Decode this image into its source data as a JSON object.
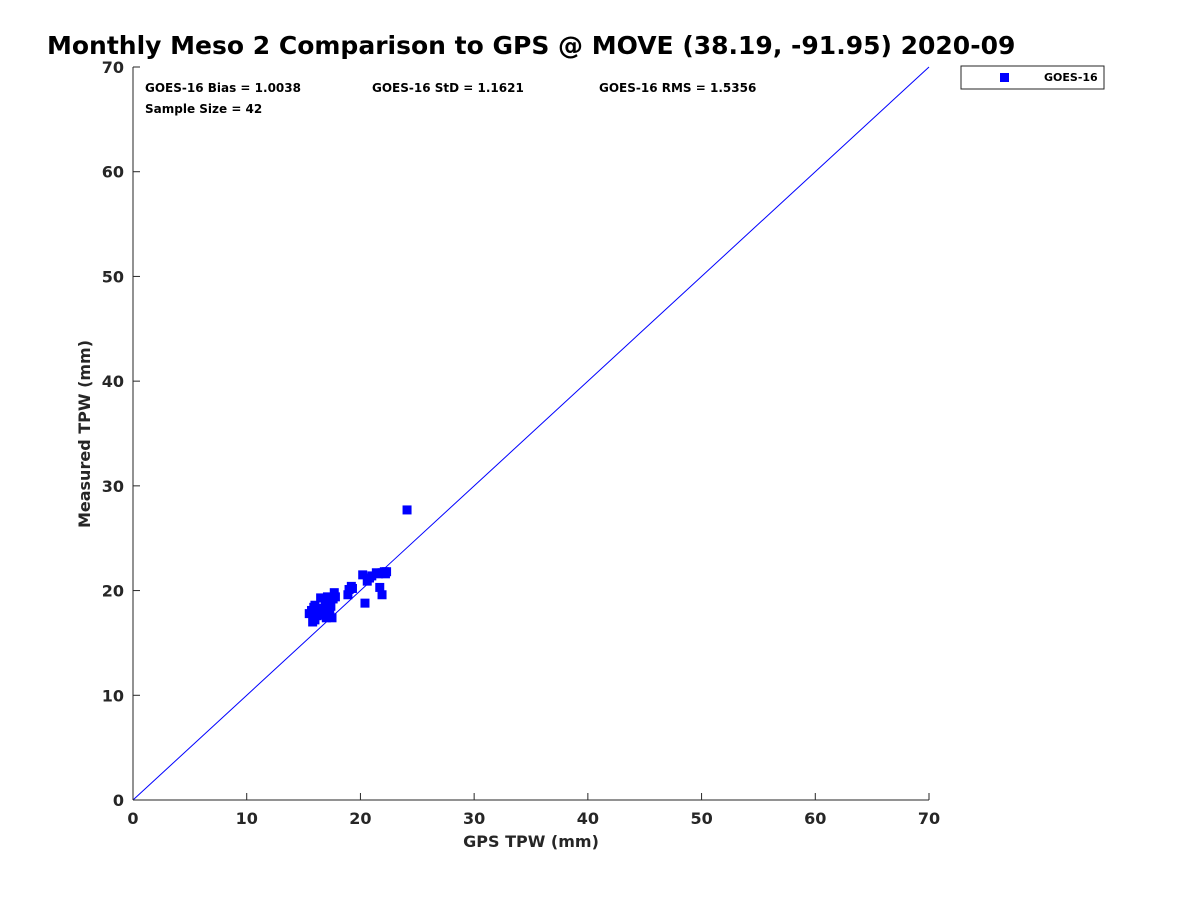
{
  "chart_data": {
    "type": "scatter",
    "title": "Monthly Meso 2 Comparison to GPS @ MOVE (38.19, -91.95) 2020-09",
    "xlabel": "GPS TPW (mm)",
    "ylabel": "Measured TPW (mm)",
    "xlim": [
      0,
      70
    ],
    "ylim": [
      0,
      70
    ],
    "xticks": [
      "0",
      "10",
      "20",
      "30",
      "40",
      "50",
      "60",
      "70"
    ],
    "yticks": [
      "0",
      "10",
      "20",
      "30",
      "40",
      "50",
      "60",
      "70"
    ],
    "grid": false,
    "legend_position": "outside top-right",
    "reference_line": {
      "from": [
        0,
        0
      ],
      "to": [
        70,
        70
      ],
      "color": "#0000ff"
    },
    "stats": {
      "bias": "GOES-16 Bias = 1.0038",
      "std": "GOES-16 StD = 1.1621",
      "rms": "GOES-16 RMS = 1.5356",
      "sample": "Sample Size = 42"
    },
    "series": [
      {
        "name": "GOES-16",
        "color": "#0000ff",
        "marker": "square",
        "points": [
          [
            15.5,
            17.8
          ],
          [
            15.7,
            18.1
          ],
          [
            15.8,
            17.0
          ],
          [
            15.9,
            18.4
          ],
          [
            16.0,
            17.2
          ],
          [
            16.0,
            18.6
          ],
          [
            16.2,
            17.6
          ],
          [
            16.3,
            18.0
          ],
          [
            16.5,
            19.3
          ],
          [
            16.6,
            17.7
          ],
          [
            16.7,
            18.3
          ],
          [
            16.8,
            17.9
          ],
          [
            16.9,
            18.7
          ],
          [
            17.0,
            17.4
          ],
          [
            17.1,
            18.1
          ],
          [
            17.1,
            19.4
          ],
          [
            17.2,
            18.9
          ],
          [
            17.3,
            17.5
          ],
          [
            17.4,
            18.5
          ],
          [
            17.5,
            17.4
          ],
          [
            17.6,
            19.2
          ],
          [
            17.7,
            19.8
          ],
          [
            17.8,
            19.4
          ],
          [
            18.9,
            19.6
          ],
          [
            19.0,
            20.1
          ],
          [
            19.2,
            20.4
          ],
          [
            19.3,
            20.2
          ],
          [
            20.2,
            21.5
          ],
          [
            20.4,
            18.8
          ],
          [
            20.6,
            20.9
          ],
          [
            20.8,
            21.2
          ],
          [
            21.0,
            21.4
          ],
          [
            21.4,
            21.7
          ],
          [
            21.6,
            21.6
          ],
          [
            21.7,
            20.3
          ],
          [
            21.9,
            19.6
          ],
          [
            21.9,
            21.7
          ],
          [
            22.1,
            21.8
          ],
          [
            22.2,
            21.6
          ],
          [
            22.3,
            21.8
          ],
          [
            24.1,
            27.7
          ],
          [
            17.3,
            18.2
          ]
        ]
      }
    ]
  }
}
